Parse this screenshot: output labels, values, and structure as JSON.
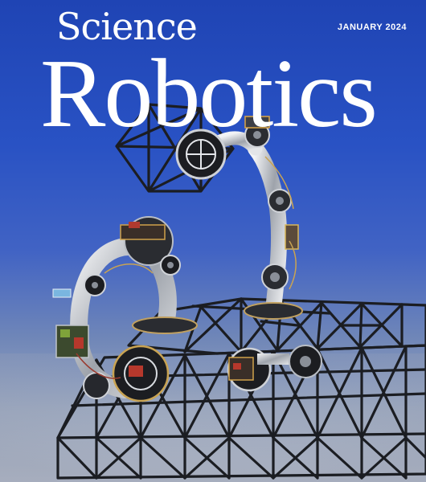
{
  "masthead": {
    "top_line": "Science",
    "title": "Robotics"
  },
  "issue": {
    "date": "JANUARY 2024"
  },
  "colors": {
    "background_top": "#1f44b4",
    "background_bottom": "#b4bac8",
    "masthead_text": "#ffffff",
    "lattice": "#1b1d22",
    "robot_metal": "#c9ccd1"
  }
}
